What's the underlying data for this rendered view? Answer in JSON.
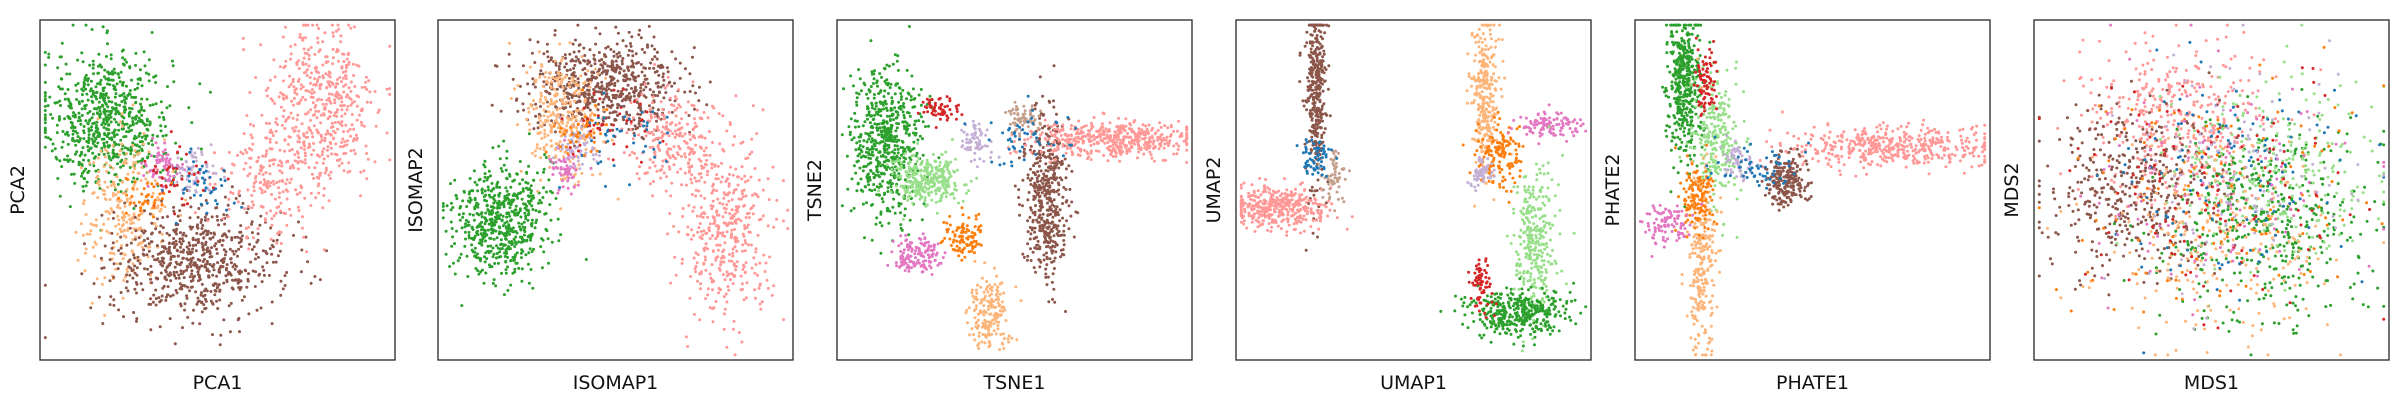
{
  "chart_data": [
    {
      "type": "scatter",
      "xlabel": "PCA1",
      "ylabel": "PCA2",
      "clusters": [
        {
          "color": "#2ca02c",
          "center": [
            -0.62,
            0.42
          ],
          "spread": [
            0.18,
            0.2
          ],
          "n": 700
        },
        {
          "color": "#fdb57a",
          "center": [
            -0.52,
            -0.12
          ],
          "spread": [
            0.12,
            0.22
          ],
          "n": 260
        },
        {
          "color": "#8c564b",
          "center": [
            -0.12,
            -0.42
          ],
          "spread": [
            0.24,
            0.16
          ],
          "n": 650
        },
        {
          "color": "#ff9896",
          "center": [
            0.58,
            0.48
          ],
          "spread": [
            0.16,
            0.26
          ],
          "n": 480
        },
        {
          "color": "#ff9896",
          "center": [
            0.3,
            0.05
          ],
          "spread": [
            0.14,
            0.18
          ],
          "n": 200
        },
        {
          "color": "#e377c2",
          "center": [
            -0.3,
            0.15
          ],
          "spread": [
            0.05,
            0.06
          ],
          "n": 70
        },
        {
          "color": "#c5b0d5",
          "center": [
            -0.15,
            0.1
          ],
          "spread": [
            0.06,
            0.06
          ],
          "n": 60
        },
        {
          "color": "#1f77b4",
          "center": [
            -0.1,
            0.05
          ],
          "spread": [
            0.1,
            0.1
          ],
          "n": 45
        },
        {
          "color": "#d62728",
          "center": [
            -0.2,
            0.1
          ],
          "spread": [
            0.1,
            0.1
          ],
          "n": 40
        },
        {
          "color": "#ff7f0e",
          "center": [
            -0.4,
            -0.05
          ],
          "spread": [
            0.06,
            0.06
          ],
          "n": 40
        }
      ]
    },
    {
      "type": "scatter",
      "xlabel": "ISOMAP1",
      "ylabel": "ISOMAP2",
      "clusters": [
        {
          "color": "#2ca02c",
          "center": [
            -0.65,
            -0.18
          ],
          "spread": [
            0.13,
            0.17
          ],
          "n": 600
        },
        {
          "color": "#8c564b",
          "center": [
            -0.05,
            0.62
          ],
          "spread": [
            0.22,
            0.13
          ],
          "n": 650
        },
        {
          "color": "#ff9896",
          "center": [
            0.62,
            -0.22
          ],
          "spread": [
            0.14,
            0.26
          ],
          "n": 420
        },
        {
          "color": "#ff9896",
          "center": [
            0.3,
            0.3
          ],
          "spread": [
            0.12,
            0.14
          ],
          "n": 220
        },
        {
          "color": "#fdb57a",
          "center": [
            -0.3,
            0.42
          ],
          "spread": [
            0.1,
            0.18
          ],
          "n": 280
        },
        {
          "color": "#e377c2",
          "center": [
            -0.28,
            0.12
          ],
          "spread": [
            0.05,
            0.06
          ],
          "n": 60
        },
        {
          "color": "#c5b0d5",
          "center": [
            -0.2,
            0.25
          ],
          "spread": [
            0.06,
            0.07
          ],
          "n": 60
        },
        {
          "color": "#1f77b4",
          "center": [
            0.05,
            0.3
          ],
          "spread": [
            0.14,
            0.12
          ],
          "n": 45
        },
        {
          "color": "#d62728",
          "center": [
            -0.05,
            0.4
          ],
          "spread": [
            0.14,
            0.12
          ],
          "n": 40
        },
        {
          "color": "#ff7f0e",
          "center": [
            -0.2,
            0.35
          ],
          "spread": [
            0.08,
            0.08
          ],
          "n": 40
        }
      ]
    },
    {
      "type": "scatter",
      "xlabel": "TSNE1",
      "ylabel": "TSNE2",
      "clusters": [
        {
          "color": "#2ca02c",
          "center": [
            -0.72,
            0.28
          ],
          "spread": [
            0.1,
            0.22
          ],
          "n": 600
        },
        {
          "color": "#98df8a",
          "center": [
            -0.5,
            0.05
          ],
          "spread": [
            0.1,
            0.07
          ],
          "n": 300
        },
        {
          "color": "#8c564b",
          "center": [
            0.18,
            -0.05
          ],
          "spread": [
            0.06,
            0.24
          ],
          "n": 450
        },
        {
          "color": "#ff9896",
          "center": [
            0.55,
            0.3
          ],
          "spread": [
            0.24,
            0.05
          ],
          "n": 480
        },
        {
          "color": "#fdb57a",
          "center": [
            -0.15,
            -0.72
          ],
          "spread": [
            0.06,
            0.1
          ],
          "n": 180
        },
        {
          "color": "#e377c2",
          "center": [
            -0.55,
            -0.38
          ],
          "spread": [
            0.07,
            0.05
          ],
          "n": 140
        },
        {
          "color": "#ff7f0e",
          "center": [
            -0.28,
            -0.28
          ],
          "spread": [
            0.05,
            0.06
          ],
          "n": 100
        },
        {
          "color": "#c4a08c",
          "center": [
            0.05,
            0.42
          ],
          "spread": [
            0.05,
            0.04
          ],
          "n": 70
        },
        {
          "color": "#c5b0d5",
          "center": [
            -0.22,
            0.28
          ],
          "spread": [
            0.04,
            0.05
          ],
          "n": 70
        },
        {
          "color": "#d62728",
          "center": [
            -0.42,
            0.48
          ],
          "spread": [
            0.05,
            0.04
          ],
          "n": 60
        },
        {
          "color": "#1f77b4",
          "center": [
            0.05,
            0.3
          ],
          "spread": [
            0.12,
            0.1
          ],
          "n": 50
        }
      ]
    },
    {
      "type": "scatter",
      "xlabel": "UMAP1",
      "ylabel": "UMAP2",
      "clusters": [
        {
          "color": "#8c564b",
          "center": [
            -0.55,
            0.55
          ],
          "spread": [
            0.03,
            0.28
          ],
          "n": 350
        },
        {
          "color": "#ff9896",
          "center": [
            -0.78,
            -0.1
          ],
          "spread": [
            0.14,
            0.06
          ],
          "n": 380
        },
        {
          "color": "#c4a08c",
          "center": [
            -0.45,
            0.08
          ],
          "spread": [
            0.04,
            0.08
          ],
          "n": 60
        },
        {
          "color": "#1f77b4",
          "center": [
            -0.55,
            0.2
          ],
          "spread": [
            0.05,
            0.06
          ],
          "n": 60
        },
        {
          "color": "#fdb57a",
          "center": [
            0.4,
            0.55
          ],
          "spread": [
            0.04,
            0.22
          ],
          "n": 280
        },
        {
          "color": "#ff7f0e",
          "center": [
            0.48,
            0.2
          ],
          "spread": [
            0.07,
            0.1
          ],
          "n": 150
        },
        {
          "color": "#e377c2",
          "center": [
            0.75,
            0.38
          ],
          "spread": [
            0.08,
            0.04
          ],
          "n": 110
        },
        {
          "color": "#c5b0d5",
          "center": [
            0.38,
            0.1
          ],
          "spread": [
            0.03,
            0.05
          ],
          "n": 60
        },
        {
          "color": "#98df8a",
          "center": [
            0.68,
            -0.3
          ],
          "spread": [
            0.06,
            0.22
          ],
          "n": 300
        },
        {
          "color": "#2ca02c",
          "center": [
            0.58,
            -0.72
          ],
          "spread": [
            0.14,
            0.07
          ],
          "n": 380
        },
        {
          "color": "#d62728",
          "center": [
            0.38,
            -0.55
          ],
          "spread": [
            0.03,
            0.08
          ],
          "n": 70
        }
      ]
    },
    {
      "type": "scatter",
      "xlabel": "PHATE1",
      "ylabel": "PHATE2",
      "clusters": [
        {
          "color": "#ff9896",
          "center": [
            0.45,
            0.25
          ],
          "spread": [
            0.3,
            0.06
          ],
          "n": 450
        },
        {
          "color": "#2ca02c",
          "center": [
            -0.72,
            0.6
          ],
          "spread": [
            0.05,
            0.22
          ],
          "n": 420
        },
        {
          "color": "#98df8a",
          "center": [
            -0.55,
            0.3
          ],
          "spread": [
            0.07,
            0.18
          ],
          "n": 250
        },
        {
          "color": "#d62728",
          "center": [
            -0.6,
            0.62
          ],
          "spread": [
            0.03,
            0.1
          ],
          "n": 80
        },
        {
          "color": "#fdb57a",
          "center": [
            -0.62,
            -0.4
          ],
          "spread": [
            0.04,
            0.3
          ],
          "n": 260
        },
        {
          "color": "#ff7f0e",
          "center": [
            -0.65,
            -0.05
          ],
          "spread": [
            0.05,
            0.1
          ],
          "n": 130
        },
        {
          "color": "#e377c2",
          "center": [
            -0.82,
            -0.2
          ],
          "spread": [
            0.06,
            0.06
          ],
          "n": 100
        },
        {
          "color": "#8c564b",
          "center": [
            -0.15,
            0.05
          ],
          "spread": [
            0.06,
            0.08
          ],
          "n": 220
        },
        {
          "color": "#c5b0d5",
          "center": [
            -0.42,
            0.15
          ],
          "spread": [
            0.05,
            0.05
          ],
          "n": 60
        },
        {
          "color": "#1f77b4",
          "center": [
            -0.3,
            0.15
          ],
          "spread": [
            0.12,
            0.06
          ],
          "n": 60
        }
      ]
    },
    {
      "type": "scatter",
      "xlabel": "MDS1",
      "ylabel": "MDS2",
      "clusters": [
        {
          "color": "#ff9896",
          "center": [
            -0.2,
            0.42
          ],
          "spread": [
            0.26,
            0.22
          ],
          "n": 420
        },
        {
          "color": "#8c564b",
          "center": [
            -0.45,
            0.0
          ],
          "spread": [
            0.24,
            0.24
          ],
          "n": 420
        },
        {
          "color": "#2ca02c",
          "center": [
            0.3,
            -0.2
          ],
          "spread": [
            0.28,
            0.28
          ],
          "n": 450
        },
        {
          "color": "#98df8a",
          "center": [
            0.35,
            0.1
          ],
          "spread": [
            0.3,
            0.28
          ],
          "n": 250
        },
        {
          "color": "#fdb57a",
          "center": [
            0.0,
            -0.3
          ],
          "spread": [
            0.34,
            0.3
          ],
          "n": 250
        },
        {
          "color": "#ff7f0e",
          "center": [
            0.0,
            0.0
          ],
          "spread": [
            0.4,
            0.36
          ],
          "n": 120
        },
        {
          "color": "#d62728",
          "center": [
            0.0,
            0.0
          ],
          "spread": [
            0.4,
            0.36
          ],
          "n": 120
        },
        {
          "color": "#1f77b4",
          "center": [
            0.05,
            0.05
          ],
          "spread": [
            0.38,
            0.36
          ],
          "n": 120
        },
        {
          "color": "#e377c2",
          "center": [
            0.0,
            0.0
          ],
          "spread": [
            0.4,
            0.36
          ],
          "n": 100
        },
        {
          "color": "#c5b0d5",
          "center": [
            0.1,
            0.1
          ],
          "spread": [
            0.36,
            0.34
          ],
          "n": 100
        }
      ]
    }
  ]
}
